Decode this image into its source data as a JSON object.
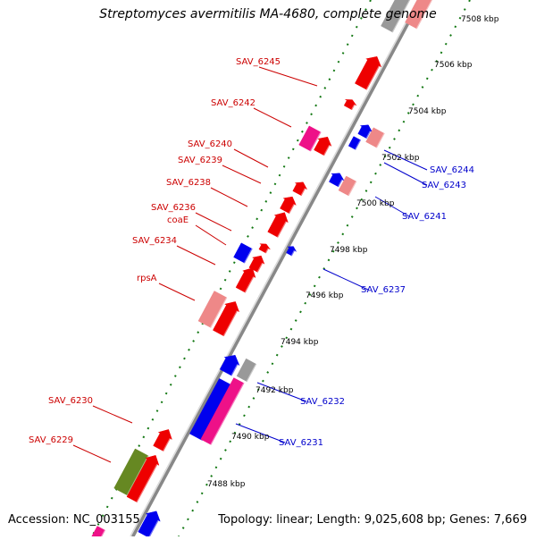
{
  "title": "Streptomyces avermitilis MA-4680, complete genome",
  "footer": {
    "accession": "Accession: NC_003155",
    "summary": "Topology: linear; Length: 9,025,608 bp; Genes: 7,669"
  },
  "ticks": [
    "7488 kbp",
    "7490 kbp",
    "7492 kbp",
    "7494 kbp",
    "7496 kbp",
    "7498 kbp",
    "7500 kbp",
    "7502 kbp",
    "7504 kbp",
    "7506 kbp",
    "7508 kbp"
  ],
  "left_labels": [
    "SAV_6245",
    "SAV_6242",
    "SAV_6240",
    "SAV_6239",
    "SAV_6238",
    "SAV_6236",
    "coaE",
    "SAV_6234",
    "rpsA",
    "SAV_6230",
    "SAV_6229"
  ],
  "right_labels": [
    "SAV_6244",
    "SAV_6243",
    "SAV_6241",
    "SAV_6237",
    "SAV_6232",
    "SAV_6231"
  ],
  "colors": {
    "forward": "#ee0000",
    "reverse": "#0000ee",
    "pink": "#ee8888",
    "magenta": "#ee1188",
    "olive": "#668822",
    "grey": "#999999",
    "tick_dots": "#117711",
    "label_left": "#cc0000",
    "label_right": "#0000cc"
  }
}
